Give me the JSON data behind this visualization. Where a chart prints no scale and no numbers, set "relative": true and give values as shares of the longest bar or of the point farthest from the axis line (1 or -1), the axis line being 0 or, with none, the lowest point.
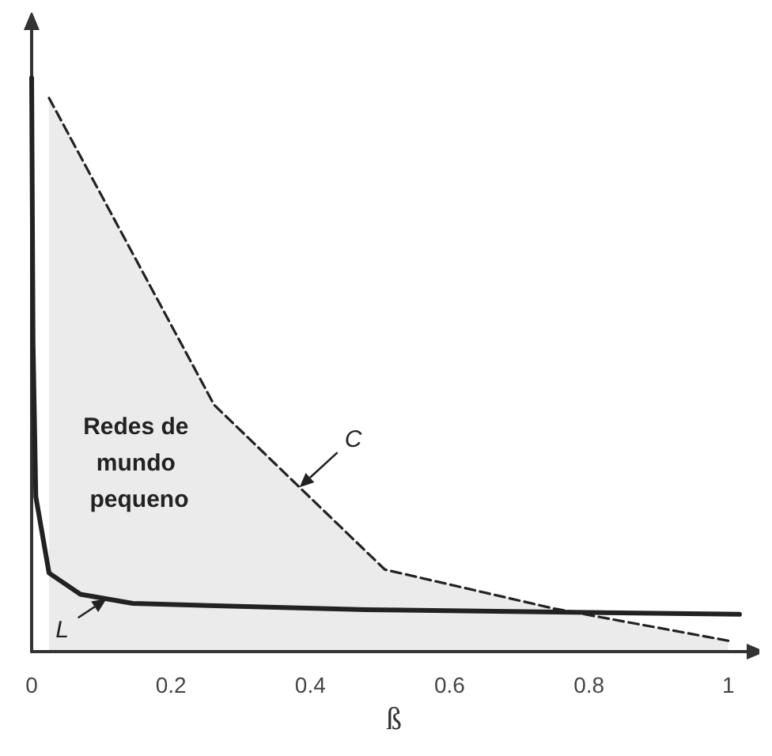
{
  "chart_data": {
    "type": "line",
    "relative": true,
    "xlabel": "ß",
    "xlim": [
      0,
      1.04
    ],
    "xticks": [
      0,
      0.2,
      0.4,
      0.6,
      0.8,
      1
    ],
    "tick_labels": "x",
    "grid": false,
    "marker": "none",
    "annotations": [
      "Redes de mundo pequeno"
    ],
    "series": [
      {
        "name": "C",
        "type": "area",
        "color": "#222222",
        "line_style": "dashed",
        "x": [
          0.025,
          0.262,
          0.507,
          0.75,
          1.0
        ],
        "values": [
          0.965,
          0.43,
          0.143,
          0.075,
          0.019
        ]
      },
      {
        "name": "L",
        "type": "line",
        "color": "#222222",
        "line_style": "solid",
        "x": [
          0,
          0.002,
          0.006,
          0.025,
          0.07,
          0.145,
          0.48,
          1.016
        ],
        "values": [
          1,
          0.54,
          0.27,
          0.137,
          0.1,
          0.084,
          0.073,
          0.065
        ]
      }
    ]
  }
}
